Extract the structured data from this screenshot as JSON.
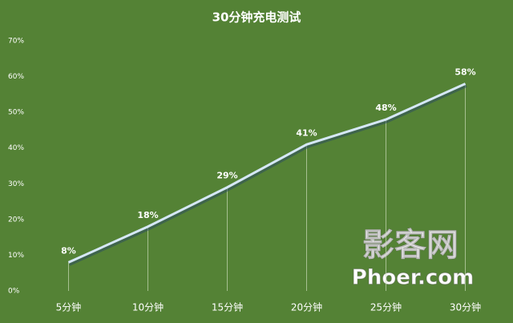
{
  "chart_data": {
    "type": "line",
    "title": "30分钟充电测试",
    "categories": [
      "5分钟",
      "10分钟",
      "15分钟",
      "20分钟",
      "25分钟",
      "30分钟"
    ],
    "values": [
      8,
      18,
      29,
      41,
      48,
      58
    ],
    "value_labels": [
      "8%",
      "18%",
      "29%",
      "41%",
      "48%",
      "58%"
    ],
    "color": "#d6e8f7",
    "ylim": [
      0,
      70
    ],
    "yticks": [
      {
        "value": 0,
        "label": "0%"
      },
      {
        "value": 10,
        "label": "10%"
      },
      {
        "value": 20,
        "label": "20%"
      },
      {
        "value": 30,
        "label": "30%"
      },
      {
        "value": 40,
        "label": "40%"
      },
      {
        "value": 50,
        "label": "50%"
      },
      {
        "value": 60,
        "label": "60%"
      },
      {
        "value": 70,
        "label": "70%"
      }
    ],
    "grid": false,
    "drop_lines": true,
    "watermark": {
      "name": "影客网",
      "site": "Phoer.com"
    }
  }
}
